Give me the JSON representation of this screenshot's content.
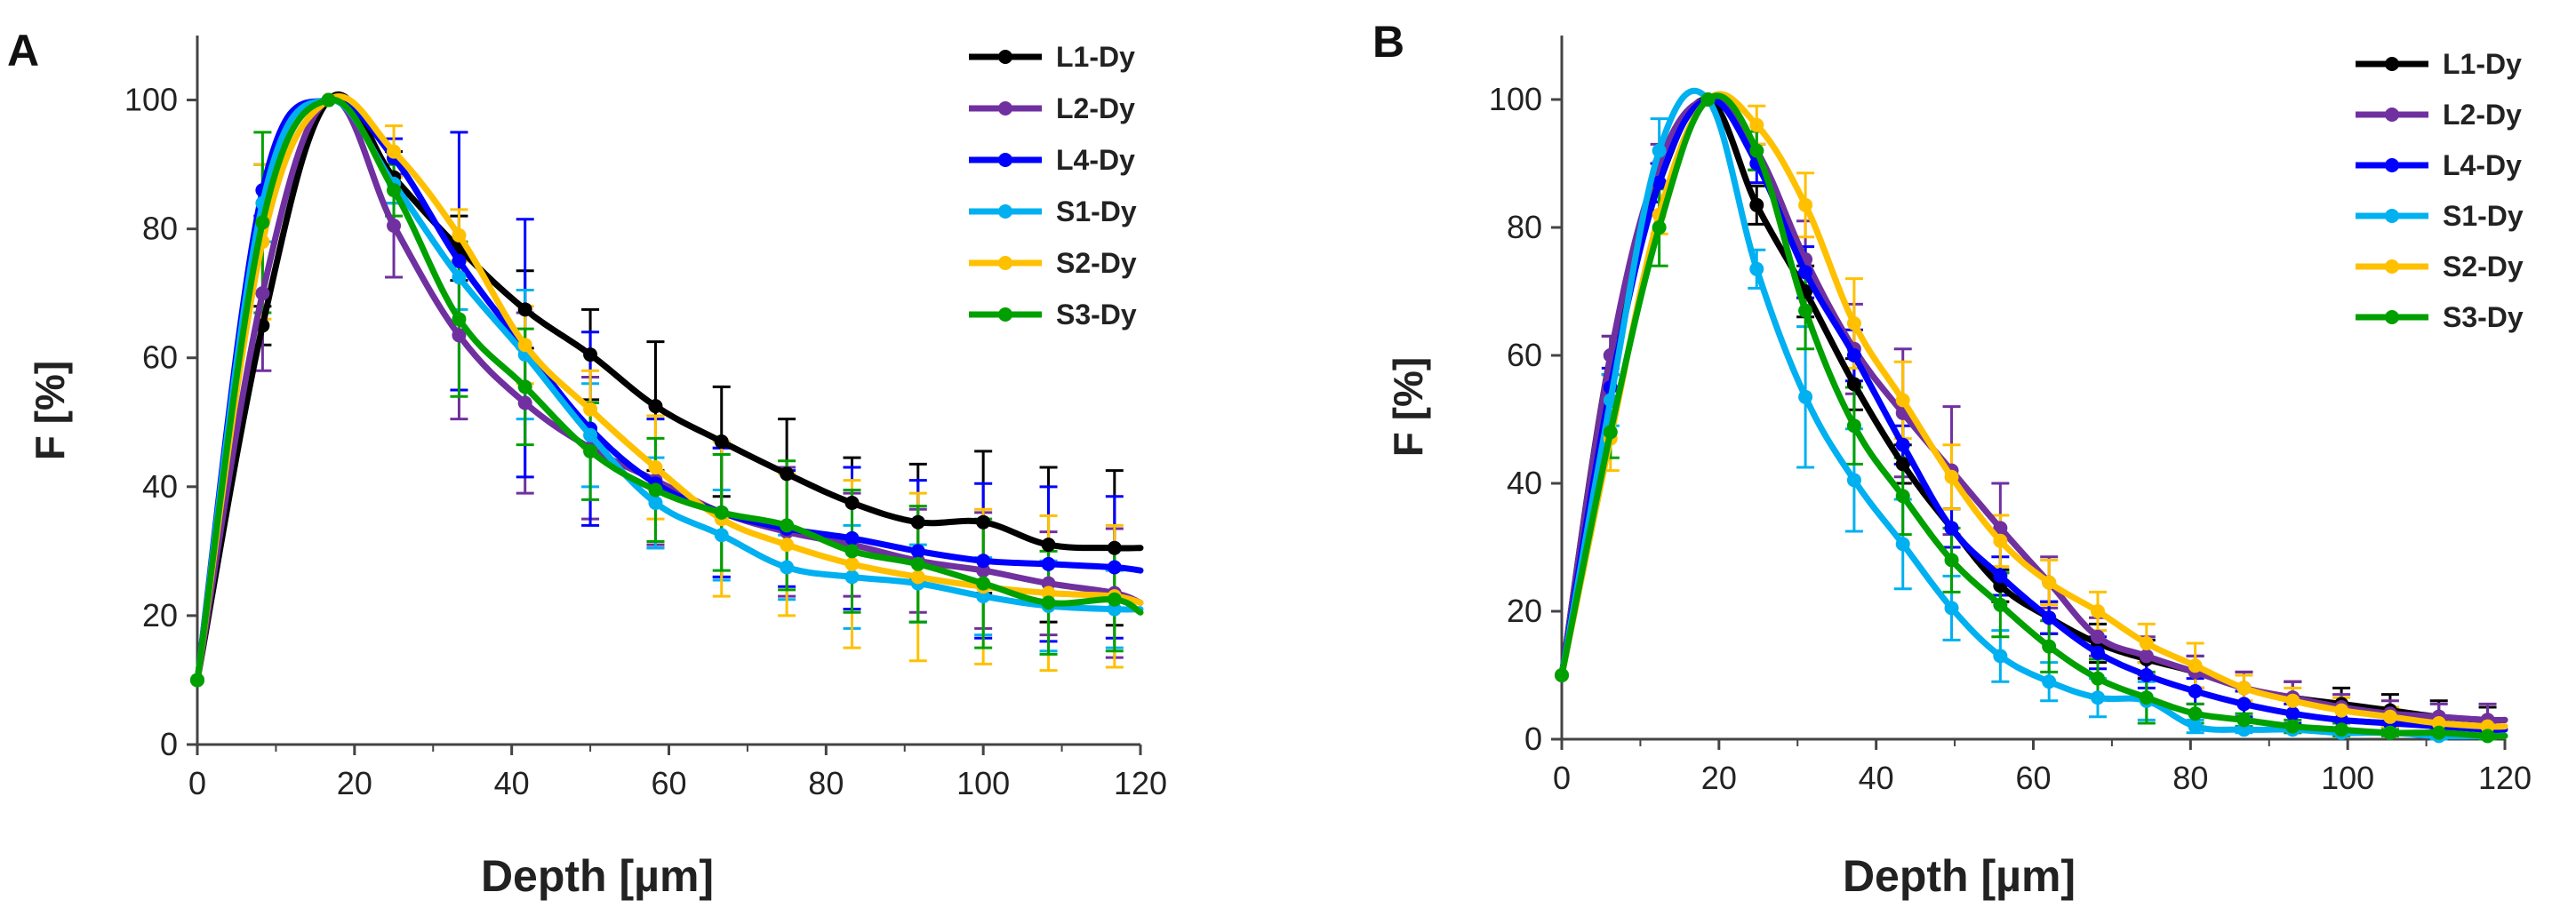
{
  "chart_data": [
    {
      "panel": "A",
      "type": "line",
      "xlabel": "Depth [µm]",
      "ylabel": "F [%]",
      "xlim": [
        0,
        120
      ],
      "ylim": [
        0,
        110
      ],
      "xticks": [
        0,
        20,
        40,
        60,
        80,
        100,
        120
      ],
      "yticks": [
        0,
        20,
        40,
        60,
        80,
        100
      ],
      "legend_position": "top-right",
      "x": [
        0,
        8.3,
        16.7,
        25,
        33.3,
        41.7,
        50,
        58.3,
        66.7,
        75,
        83.3,
        91.7,
        100,
        108.3,
        116.7,
        120
      ],
      "series": [
        {
          "name": "L1-Dy",
          "color": "#000000",
          "values": [
            10,
            65,
            100,
            88,
            77,
            67.5,
            60.5,
            52.5,
            47,
            42,
            37.5,
            34.5,
            34.5,
            31,
            30.5,
            30.5
          ],
          "errors": [
            0,
            3,
            0,
            4,
            5,
            6,
            7,
            10,
            8.5,
            8.5,
            7,
            9,
            11,
            12,
            12,
            0
          ]
        },
        {
          "name": "L2-Dy",
          "color": "#7030A0",
          "values": [
            10,
            70,
            100,
            80.5,
            63.5,
            53,
            46,
            41,
            36,
            33,
            31,
            28.5,
            27,
            25,
            23.5,
            22
          ],
          "errors": [
            0,
            12,
            0,
            8,
            13,
            14,
            11,
            10,
            10,
            10,
            8,
            8,
            9,
            8,
            10,
            0
          ]
        },
        {
          "name": "L4-Dy",
          "color": "#0000FF",
          "values": [
            10,
            86,
            100,
            91,
            75,
            61.5,
            49,
            40.5,
            36,
            33.5,
            32,
            30,
            28.5,
            28,
            27.5,
            27
          ],
          "errors": [
            0,
            4,
            0,
            3,
            20,
            20,
            15,
            10,
            10,
            9,
            11,
            11,
            12,
            12,
            11,
            0
          ]
        },
        {
          "name": "S1-Dy",
          "color": "#00B0F0",
          "values": [
            10,
            84,
            100,
            87,
            72.5,
            60.5,
            48,
            37.5,
            32.5,
            27.5,
            26,
            25,
            23,
            21.5,
            21,
            21
          ],
          "errors": [
            0,
            6,
            0,
            3,
            5,
            10,
            8,
            7,
            7,
            5,
            8,
            6,
            6,
            7,
            6,
            0
          ]
        },
        {
          "name": "S2-Dy",
          "color": "#FFC000",
          "values": [
            10,
            78,
            100,
            92,
            79,
            62,
            52,
            43,
            35,
            31,
            28,
            26,
            24.5,
            23.5,
            23,
            22
          ],
          "errors": [
            0,
            12,
            0,
            4,
            4,
            6,
            6,
            8,
            12,
            11,
            13,
            13,
            12,
            12,
            11,
            0
          ]
        },
        {
          "name": "S3-Dy",
          "color": "#00A000",
          "values": [
            10,
            81,
            100,
            86,
            66,
            55.5,
            45.5,
            39.5,
            36,
            34,
            30,
            28,
            25,
            22,
            22.5,
            20.5
          ],
          "errors": [
            0,
            14,
            0,
            4,
            12,
            9,
            7.5,
            8,
            9,
            10,
            9.5,
            9,
            10,
            8,
            8,
            0
          ]
        }
      ]
    },
    {
      "panel": "B",
      "type": "line",
      "xlabel": "Depth [µm]",
      "ylabel": "F [%]",
      "xlim": [
        0,
        120
      ],
      "ylim": [
        0,
        110
      ],
      "xticks": [
        0,
        20,
        40,
        60,
        80,
        100,
        120
      ],
      "yticks": [
        0,
        20,
        40,
        60,
        80,
        100
      ],
      "legend_position": "top-right",
      "x": [
        0,
        6.2,
        12.4,
        18.6,
        24.8,
        31,
        37.2,
        43.4,
        49.6,
        55.8,
        62,
        68.2,
        74.4,
        80.6,
        86.8,
        93,
        99.2,
        105.4,
        111.6,
        117.8,
        120
      ],
      "series": [
        {
          "name": "L1-Dy",
          "color": "#000000",
          "values": [
            10,
            60,
            87,
            100,
            83.5,
            70,
            55.5,
            43,
            33,
            24,
            19,
            15,
            12.5,
            10.5,
            8,
            6.5,
            5.5,
            4.5,
            3.5,
            3,
            3
          ],
          "errors": [
            0,
            3,
            3,
            0,
            3,
            4,
            4,
            3,
            3,
            2.5,
            2.5,
            3,
            3,
            2.5,
            2.5,
            2.5,
            2.5,
            2.5,
            2.5,
            2,
            0
          ]
        },
        {
          "name": "L2-Dy",
          "color": "#7030A0",
          "values": [
            10,
            60,
            90,
            100,
            92,
            75,
            61,
            51,
            42,
            33,
            24.5,
            16,
            13,
            10.5,
            8,
            6.5,
            5,
            4,
            3.5,
            3,
            3
          ],
          "errors": [
            0,
            3,
            3,
            0,
            3,
            6,
            7,
            10,
            10,
            7,
            4,
            3,
            3,
            2.5,
            2.5,
            2.5,
            2,
            2,
            2,
            2.5,
            0
          ]
        },
        {
          "name": "L4-Dy",
          "color": "#0000FF",
          "values": [
            10,
            55,
            87,
            100,
            90,
            73,
            60,
            46,
            33,
            25.5,
            19,
            13.5,
            10,
            7.5,
            5.5,
            4,
            3,
            2.5,
            2,
            1.5,
            1.5
          ],
          "errors": [
            0,
            3,
            3,
            0,
            3,
            4,
            4,
            3,
            3,
            3,
            2.5,
            2.5,
            2,
            2,
            2,
            1.5,
            1.5,
            1.5,
            1,
            1,
            0
          ]
        },
        {
          "name": "S1-Dy",
          "color": "#00B0F0",
          "values": [
            10,
            53,
            92,
            100,
            73.5,
            53.5,
            40.5,
            30.5,
            20.5,
            13,
            9,
            6.5,
            6,
            2,
            1.5,
            1.5,
            1,
            1,
            0.5,
            0.5,
            0.5
          ],
          "errors": [
            0,
            4,
            5,
            0,
            3,
            11,
            8,
            7,
            5,
            4,
            3,
            3,
            3,
            1,
            0.5,
            0.5,
            0.5,
            0.5,
            0.5,
            0.5,
            0
          ]
        },
        {
          "name": "S2-Dy",
          "color": "#FFC000",
          "values": [
            10,
            47,
            82,
            100,
            96,
            83.5,
            65,
            53,
            41,
            31,
            24.5,
            20,
            15,
            11.5,
            8,
            6,
            4.5,
            3.5,
            2.5,
            2,
            2
          ],
          "errors": [
            0,
            5,
            3,
            0,
            3,
            5,
            7,
            6,
            5,
            4,
            3.5,
            3,
            3,
            3.5,
            2,
            2,
            2,
            1.5,
            1,
            1,
            0
          ]
        },
        {
          "name": "S3-Dy",
          "color": "#00A000",
          "values": [
            10,
            48,
            80,
            100,
            92,
            67,
            49,
            38,
            28,
            21,
            14.5,
            9.5,
            6.5,
            4,
            3,
            2,
            1.5,
            1,
            1,
            0.5,
            0.5
          ],
          "errors": [
            0,
            4,
            6,
            0,
            3,
            6,
            6,
            6,
            5,
            5,
            4,
            3,
            4,
            1.5,
            1,
            1,
            1,
            0.5,
            0.5,
            0.5,
            0
          ]
        }
      ]
    }
  ]
}
